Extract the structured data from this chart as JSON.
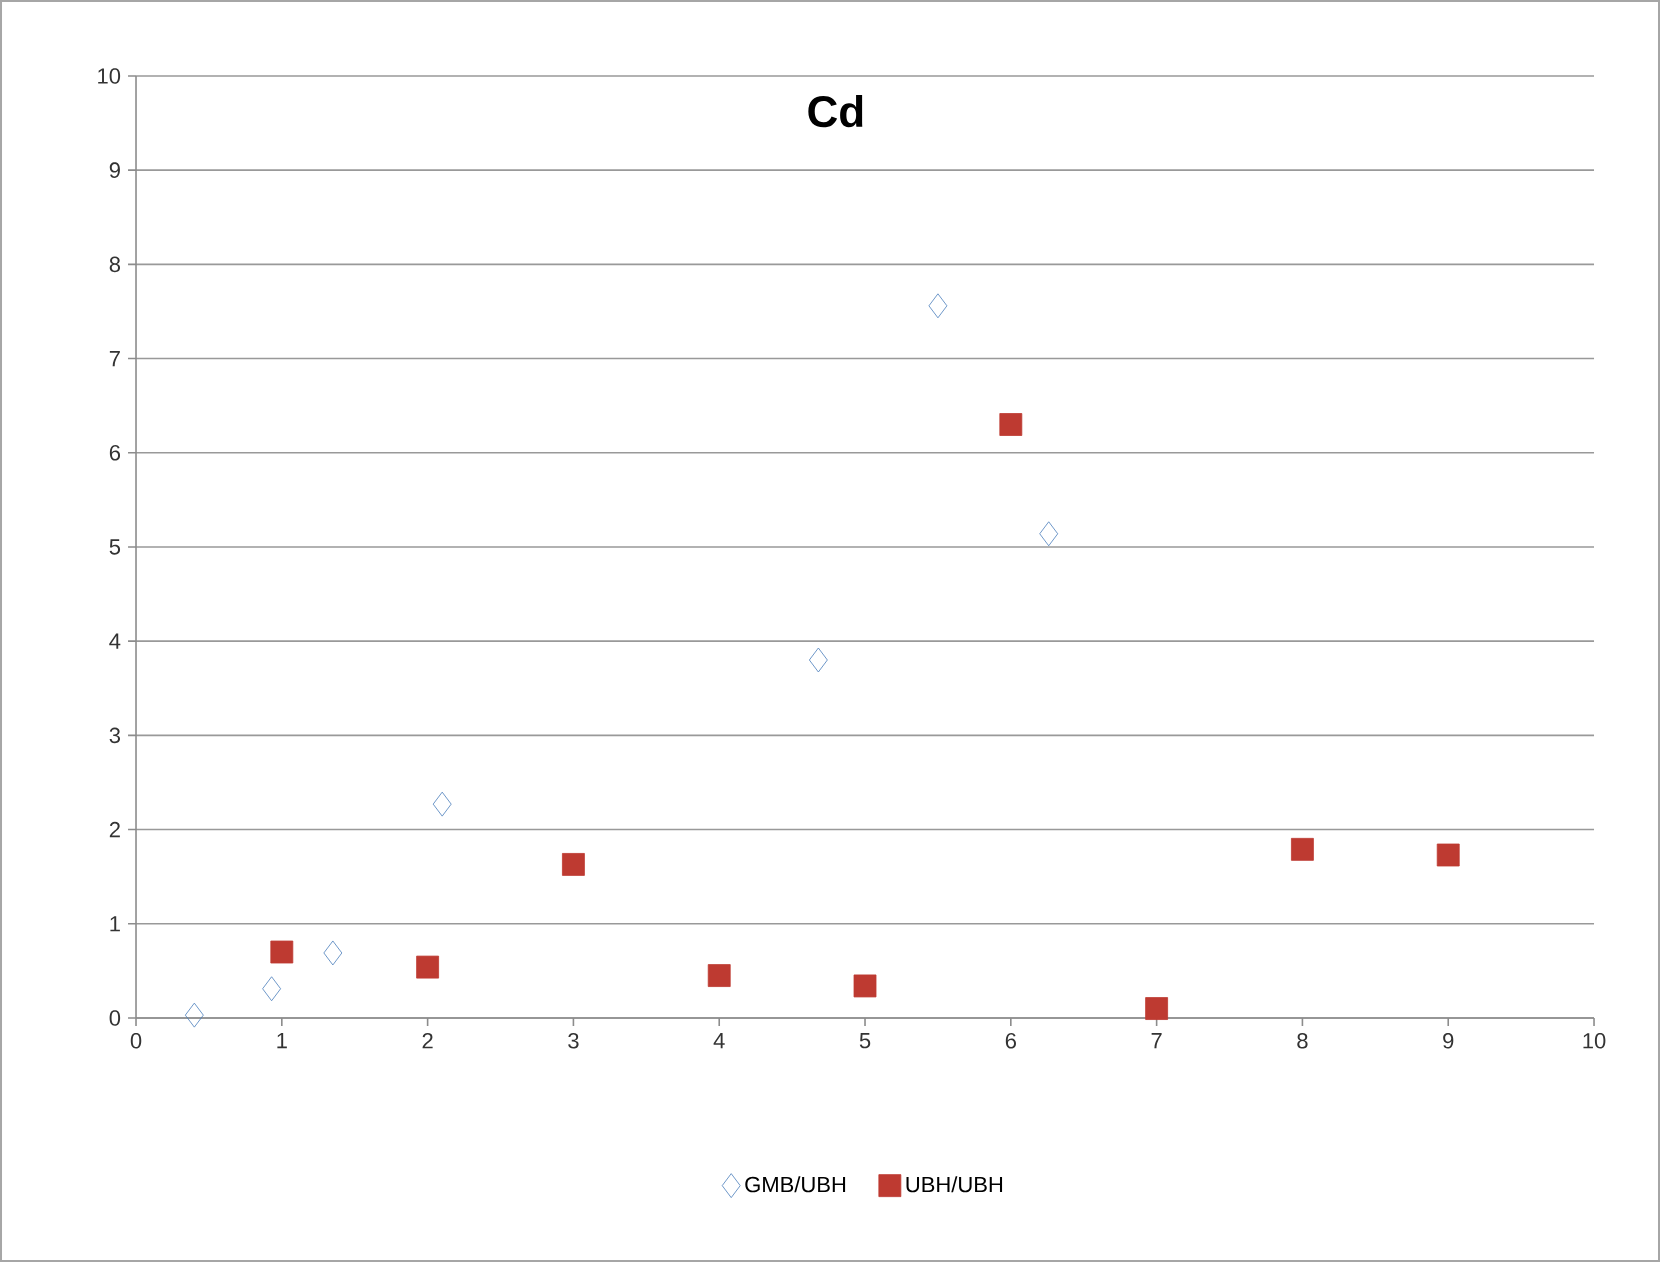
{
  "chart_data": {
    "type": "scatter",
    "title": "Cd",
    "series": [
      {
        "name": "GMB/UBH",
        "color": "#4a7ebb",
        "marker": "diamond",
        "x": [
          0.4,
          0.93,
          1.35,
          2.1,
          4.68,
          5.5,
          6.26
        ],
        "values": [
          0.03,
          0.31,
          0.69,
          2.27,
          3.8,
          7.56,
          5.14
        ]
      },
      {
        "name": "UBH/UBH",
        "color": "#be3a31",
        "marker": "square",
        "x": [
          1,
          2,
          3,
          4,
          5,
          6,
          7,
          8,
          9
        ],
        "values": [
          0.7,
          0.54,
          1.63,
          0.45,
          0.34,
          6.3,
          0.1,
          1.79,
          1.73
        ]
      }
    ],
    "xlim": [
      0,
      10
    ],
    "ylim": [
      0,
      10
    ],
    "xticks": [
      0,
      1,
      2,
      3,
      4,
      5,
      6,
      7,
      8,
      9,
      10
    ],
    "yticks": [
      0,
      1,
      2,
      3,
      4,
      5,
      6,
      7,
      8,
      9,
      10
    ],
    "grid": "y",
    "legend": "bottom"
  }
}
